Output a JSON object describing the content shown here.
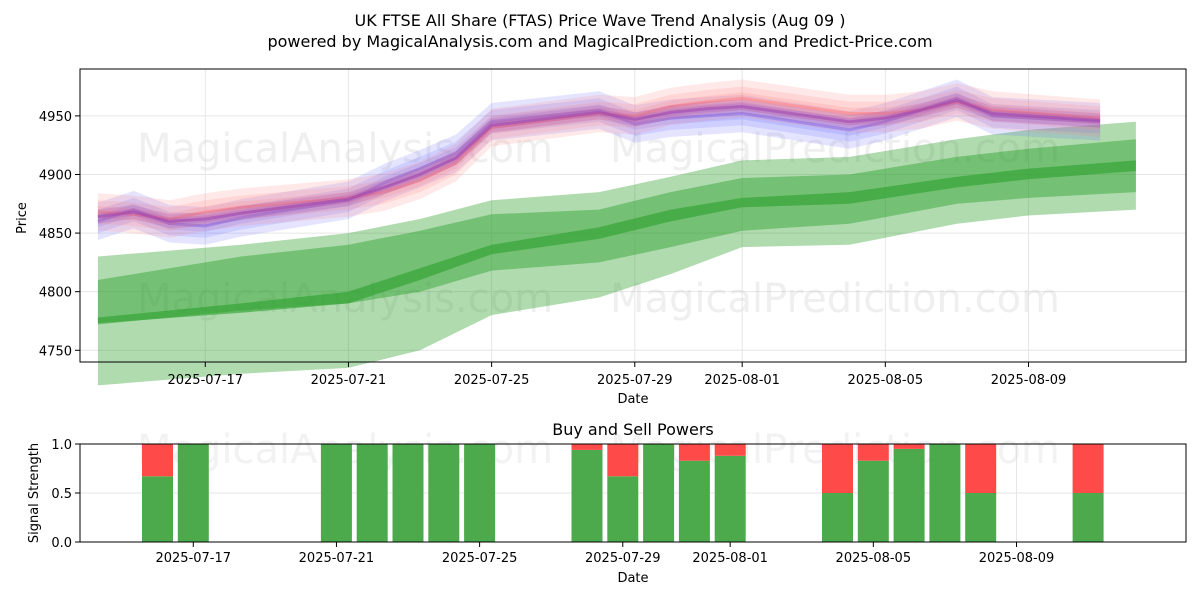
{
  "title_line1": "UK FTSE All Share (FTAS) Price Wave Trend Analysis (Aug 09 )",
  "title_line2": "powered by MagicalAnalysis.com and MagicalPrediction.com and Predict-Price.com",
  "watermarks": [
    "MagicalAnalysis.com",
    "MagicalPrediction.com"
  ],
  "colors": {
    "green": "#2ca02c",
    "red": "#ff4444",
    "blue": "#6b6bff",
    "pink": "#ff8080",
    "purple": "#9b3fae",
    "bar_green": "#4caa4c",
    "bar_red": "#ff4a4a"
  },
  "chart_data": [
    {
      "type": "area",
      "title": "",
      "xlabel": "Date",
      "ylabel": "Price",
      "xlim": [
        "2025-07-13",
        "2025-08-13"
      ],
      "ylim": [
        4740,
        4990
      ],
      "x_ticks": [
        "2025-07-17",
        "2025-07-21",
        "2025-07-25",
        "2025-07-29",
        "2025-08-01",
        "2025-08-05",
        "2025-08-09"
      ],
      "y_ticks": [
        4750,
        4800,
        4850,
        4900,
        4950
      ],
      "grid": true,
      "history_dates": [
        "2025-07-14",
        "2025-07-15",
        "2025-07-16",
        "2025-07-17",
        "2025-07-18",
        "2025-07-21",
        "2025-07-22",
        "2025-07-23",
        "2025-07-24",
        "2025-07-25",
        "2025-07-28",
        "2025-07-29",
        "2025-07-30",
        "2025-07-31",
        "2025-08-01",
        "2025-08-04",
        "2025-08-05",
        "2025-08-06",
        "2025-08-07",
        "2025-08-08",
        "2025-08-11"
      ],
      "history_series": [
        {
          "name": "blue-wave",
          "color": "#6b6bff",
          "values": [
            4860,
            4870,
            4858,
            4856,
            4863,
            4878,
            4893,
            4905,
            4918,
            4945,
            4955,
            4943,
            4948,
            4950,
            4952,
            4938,
            4945,
            4955,
            4965,
            4950,
            4945
          ]
        },
        {
          "name": "red-wave",
          "color": "#ff8080",
          "values": [
            4868,
            4866,
            4862,
            4868,
            4872,
            4880,
            4885,
            4895,
            4910,
            4940,
            4952,
            4950,
            4958,
            4962,
            4965,
            4952,
            4952,
            4955,
            4962,
            4955,
            4948
          ]
        },
        {
          "name": "purple-mix",
          "color": "#9b3fae",
          "values": [
            4864,
            4868,
            4860,
            4862,
            4867,
            4879,
            4889,
            4900,
            4914,
            4942,
            4953,
            4947,
            4953,
            4956,
            4958,
            4945,
            4948,
            4955,
            4963,
            4952,
            4946
          ]
        }
      ],
      "forecast_dates": [
        "2025-07-14",
        "2025-07-18",
        "2025-07-21",
        "2025-07-23",
        "2025-07-25",
        "2025-07-28",
        "2025-07-30",
        "2025-08-01",
        "2025-08-04",
        "2025-08-07",
        "2025-08-09",
        "2025-08-12"
      ],
      "forecast_bands": [
        {
          "name": "outer",
          "low": [
            4720,
            4730,
            4735,
            4750,
            4780,
            4795,
            4815,
            4838,
            4840,
            4858,
            4865,
            4870
          ],
          "high": [
            4830,
            4840,
            4850,
            4862,
            4878,
            4885,
            4898,
            4912,
            4915,
            4930,
            4938,
            4945
          ]
        },
        {
          "name": "middle",
          "low": [
            4772,
            4784,
            4790,
            4800,
            4818,
            4825,
            4838,
            4852,
            4858,
            4875,
            4880,
            4885
          ],
          "high": [
            4810,
            4830,
            4840,
            4852,
            4866,
            4870,
            4885,
            4897,
            4900,
            4915,
            4922,
            4930
          ]
        },
        {
          "name": "core",
          "low": [
            4773,
            4782,
            4790,
            4810,
            4832,
            4845,
            4860,
            4872,
            4875,
            4889,
            4896,
            4903
          ],
          "high": [
            4778,
            4790,
            4800,
            4820,
            4840,
            4855,
            4870,
            4880,
            4885,
            4898,
            4905,
            4912
          ]
        }
      ]
    },
    {
      "type": "bar",
      "title": "Buy and Sell Powers",
      "xlabel": "Date",
      "ylabel": "Signal Strength",
      "ylim": [
        0,
        1
      ],
      "y_ticks": [
        "0.0",
        "0.5",
        "1.0"
      ],
      "x_ticks": [
        "2025-07-17",
        "2025-07-21",
        "2025-07-25",
        "2025-07-29",
        "2025-08-01",
        "2025-08-05",
        "2025-08-09"
      ],
      "dates": [
        "2025-07-16",
        "2025-07-17",
        "2025-07-21",
        "2025-07-22",
        "2025-07-23",
        "2025-07-24",
        "2025-07-25",
        "2025-07-28",
        "2025-07-29",
        "2025-07-30",
        "2025-07-31",
        "2025-08-01",
        "2025-08-04",
        "2025-08-05",
        "2025-08-06",
        "2025-08-07",
        "2025-08-08",
        "2025-08-11"
      ],
      "series": [
        {
          "name": "Buy power",
          "color": "#4caa4c",
          "values": [
            0.67,
            1.0,
            1.0,
            1.0,
            1.0,
            1.0,
            1.0,
            0.94,
            0.67,
            1.0,
            0.83,
            0.88,
            0.5,
            0.83,
            0.95,
            1.0,
            0.5,
            0.5
          ]
        },
        {
          "name": "Sell power",
          "color": "#ff4a4a",
          "values": [
            0.33,
            0.0,
            0.0,
            0.0,
            0.0,
            0.0,
            0.0,
            0.06,
            0.33,
            0.0,
            0.17,
            0.12,
            0.5,
            0.17,
            0.05,
            0.0,
            0.5,
            0.5
          ]
        }
      ]
    }
  ]
}
